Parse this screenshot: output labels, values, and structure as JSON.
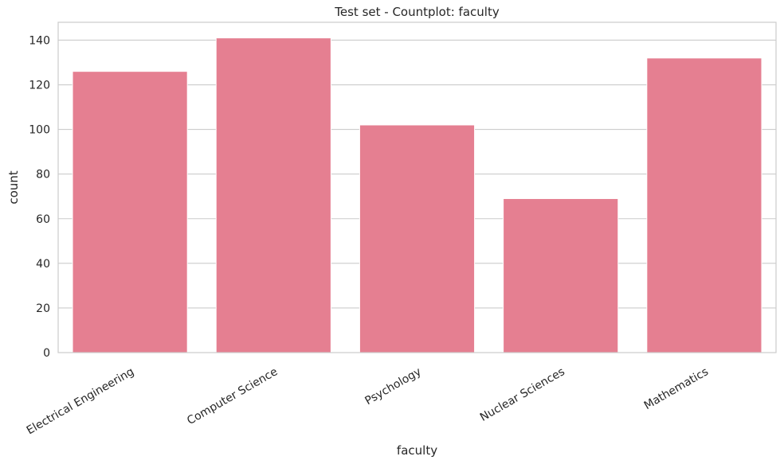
{
  "chart_data": {
    "type": "bar",
    "title": "Test set - Countplot: faculty",
    "xlabel": "faculty",
    "ylabel": "count",
    "categories": [
      "Electrical Engineering",
      "Computer Science",
      "Psychology",
      "Nuclear Sciences",
      "Mathematics"
    ],
    "values": [
      126,
      141,
      102,
      69,
      132
    ],
    "ylim": [
      0,
      148
    ],
    "yticks": [
      0,
      20,
      40,
      60,
      80,
      100,
      120,
      140
    ],
    "grid": true,
    "legend": "none",
    "bar_color": "#e57f91",
    "grid_color": "#cccccc",
    "text_color": "#262626"
  }
}
